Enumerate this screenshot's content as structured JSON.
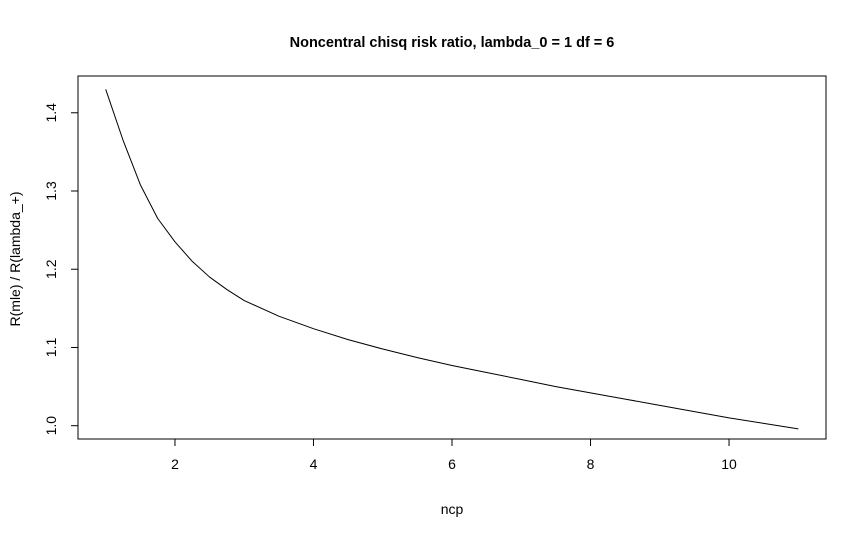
{
  "chart_data": {
    "type": "line",
    "title": "Noncentral chisq risk ratio, lambda_0 = 1  df = 6",
    "xlabel": "ncp",
    "ylabel": "R(mle) / R(lambda_+)",
    "xlim": [
      0.6,
      11.4
    ],
    "ylim": [
      0.983,
      1.447
    ],
    "grid": false,
    "x_ticks": [
      2,
      4,
      6,
      8,
      10
    ],
    "x_tick_labels": [
      "2",
      "4",
      "6",
      "8",
      "10"
    ],
    "y_ticks": [
      1.0,
      1.1,
      1.2,
      1.3,
      1.4
    ],
    "y_tick_labels": [
      "1.0",
      "1.1",
      "1.2",
      "1.3",
      "1.4"
    ],
    "series": [
      {
        "color": "#000000",
        "x": [
          1.0,
          1.25,
          1.5,
          1.75,
          2.0,
          2.25,
          2.5,
          2.75,
          3.0,
          3.5,
          4.0,
          4.5,
          5.0,
          5.5,
          6.0,
          6.5,
          7.0,
          7.5,
          8.0,
          8.5,
          9.0,
          9.5,
          10.0,
          10.5,
          11.0
        ],
        "y": [
          1.43,
          1.365,
          1.308,
          1.265,
          1.235,
          1.21,
          1.19,
          1.174,
          1.16,
          1.14,
          1.124,
          1.11,
          1.098,
          1.087,
          1.077,
          1.068,
          1.059,
          1.05,
          1.042,
          1.034,
          1.026,
          1.018,
          1.01,
          1.003,
          0.996
        ]
      }
    ]
  }
}
